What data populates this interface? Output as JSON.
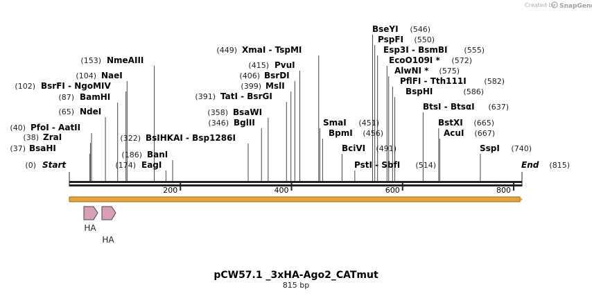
{
  "credit": {
    "prefix": "Created by",
    "brand": "SnapGene"
  },
  "plasmid": {
    "name": "pCW57.1 _3xHA-Ago2_CATmut",
    "length_label": "815 bp",
    "length": 815
  },
  "sequence_ends": {
    "start_label": "Start",
    "start_pos": "(0)",
    "end_label": "End",
    "end_pos": "(815)"
  },
  "ticks": [
    {
      "value": 200,
      "label": "200"
    },
    {
      "value": 400,
      "label": "400"
    },
    {
      "value": 600,
      "label": "600"
    },
    {
      "value": 800,
      "label": "800"
    }
  ],
  "enzymes": [
    {
      "pos": "(37)",
      "name": "BsaHI",
      "cut": 37
    },
    {
      "pos": "(38)",
      "name": "ZraI",
      "cut": 38
    },
    {
      "pos": "(40)",
      "name": "PfoI  -  AatII",
      "cut": 40
    },
    {
      "pos": "(65)",
      "name": "NdeI",
      "cut": 65
    },
    {
      "pos": "(87)",
      "name": "BamHI",
      "cut": 87
    },
    {
      "pos": "(102)",
      "name": "BsrFI  -  NgoMIV",
      "cut": 102
    },
    {
      "pos": "(104)",
      "name": "NaeI",
      "cut": 104
    },
    {
      "pos": "(153)",
      "name": "NmeAIII",
      "cut": 153
    },
    {
      "pos": "(174)",
      "name": "EagI",
      "cut": 174
    },
    {
      "pos": "(186)",
      "name": "BanI",
      "cut": 186
    },
    {
      "pos": "(322)",
      "name": "BsIHKAI  -  Bsp1286I",
      "cut": 322
    },
    {
      "pos": "(346)",
      "name": "BglII",
      "cut": 346
    },
    {
      "pos": "(358)",
      "name": "BsaWI",
      "cut": 358
    },
    {
      "pos": "(391)",
      "name": "TatI  -  BsrGI",
      "cut": 391
    },
    {
      "pos": "(399)",
      "name": "MslI",
      "cut": 399
    },
    {
      "pos": "(406)",
      "name": "BsrDI",
      "cut": 406
    },
    {
      "pos": "(415)",
      "name": "PvuI",
      "cut": 415
    },
    {
      "pos": "(449)",
      "name": "XmaI  -  TspMI",
      "cut": 449
    },
    {
      "pos": "(451)",
      "name": "SmaI",
      "cut": 451
    },
    {
      "pos": "(456)",
      "name": "BpmI",
      "cut": 456
    },
    {
      "pos": "",
      "name": "BciVI",
      "cut": 491
    },
    {
      "pos": "(491)",
      "name": "",
      "cut": 491
    },
    {
      "pos": "",
      "name": "PstI  -  SbfI",
      "cut": 514
    },
    {
      "pos": "(514)",
      "name": "",
      "cut": 514
    },
    {
      "pos": "(546)",
      "name": "BseYI",
      "cut": 546
    },
    {
      "pos": "(550)",
      "name": "PspFI",
      "cut": 550
    },
    {
      "pos": "(555)",
      "name": "Esp3I  -  BsmBI",
      "cut": 555
    },
    {
      "pos": "(572)",
      "name": "EcoO109I *",
      "cut": 572
    },
    {
      "pos": "(575)",
      "name": "AlwNI *",
      "cut": 575
    },
    {
      "pos": "(582)",
      "name": "PflFI  -  Tth111I",
      "cut": 582
    },
    {
      "pos": "(586)",
      "name": "BspHI",
      "cut": 586
    },
    {
      "pos": "(637)",
      "name": "BtsI  -  BtsαI",
      "cut": 637
    },
    {
      "pos": "(665)",
      "name": "BstXI",
      "cut": 665
    },
    {
      "pos": "(667)",
      "name": "AcuI",
      "cut": 667
    },
    {
      "pos": "(740)",
      "name": "SspI",
      "cut": 740
    }
  ],
  "features": [
    {
      "label": "HA",
      "color": "#d8a0b8"
    },
    {
      "label": "HA",
      "color": "#d8a0b8"
    }
  ],
  "orf_color": "#e8a33a"
}
